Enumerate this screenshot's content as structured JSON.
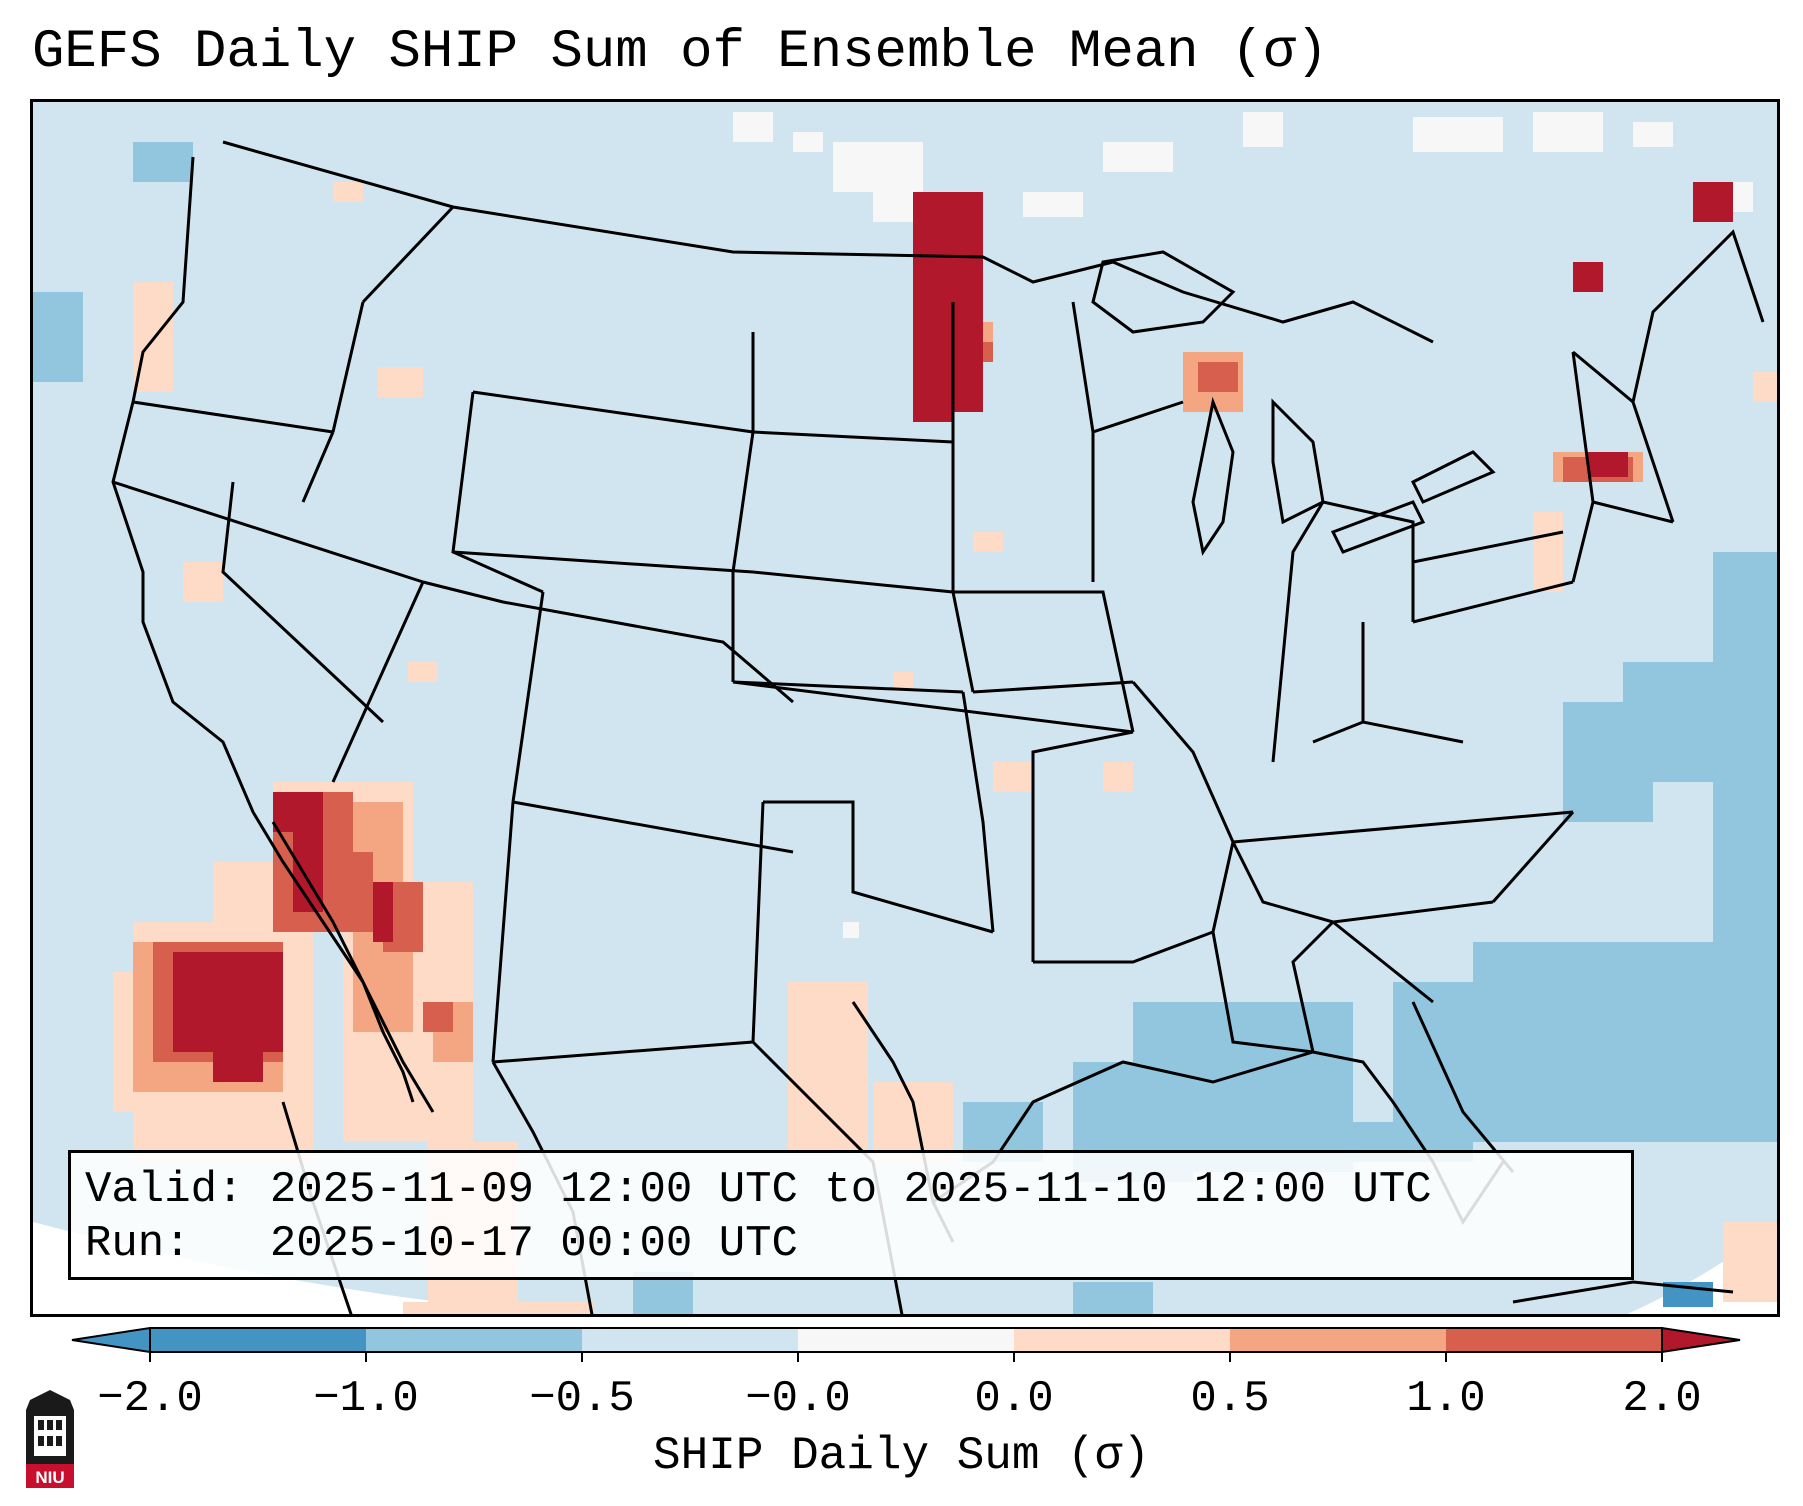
{
  "title": "GEFS Daily SHIP Sum of Ensemble Mean (σ)",
  "info": {
    "valid_label": "Valid:",
    "valid_value": "2025-11-09 12:00 UTC to 2025-11-10 12:00 UTC",
    "run_label": "Run:",
    "run_value": "2025-10-17 00:00 UTC"
  },
  "colorbar": {
    "label": "SHIP Daily Sum (σ)",
    "ticks": [
      "−2.0",
      "−1.0",
      "−0.5",
      "−0.0",
      "0.0",
      "0.5",
      "1.0",
      "2.0"
    ],
    "colors": [
      "#4393c3",
      "#92c5de",
      "#d1e5f0",
      "#f7f7f7",
      "#fddbc7",
      "#f4a582",
      "#d6604d",
      "#b2182b"
    ],
    "extend": "both"
  },
  "map": {
    "background_color": "#d1e5f0",
    "region": "Continental United States",
    "features": [
      "state-borders",
      "coastlines",
      "country-borders"
    ]
  },
  "logo": {
    "text": "NIU",
    "color": "#c8102e"
  }
}
